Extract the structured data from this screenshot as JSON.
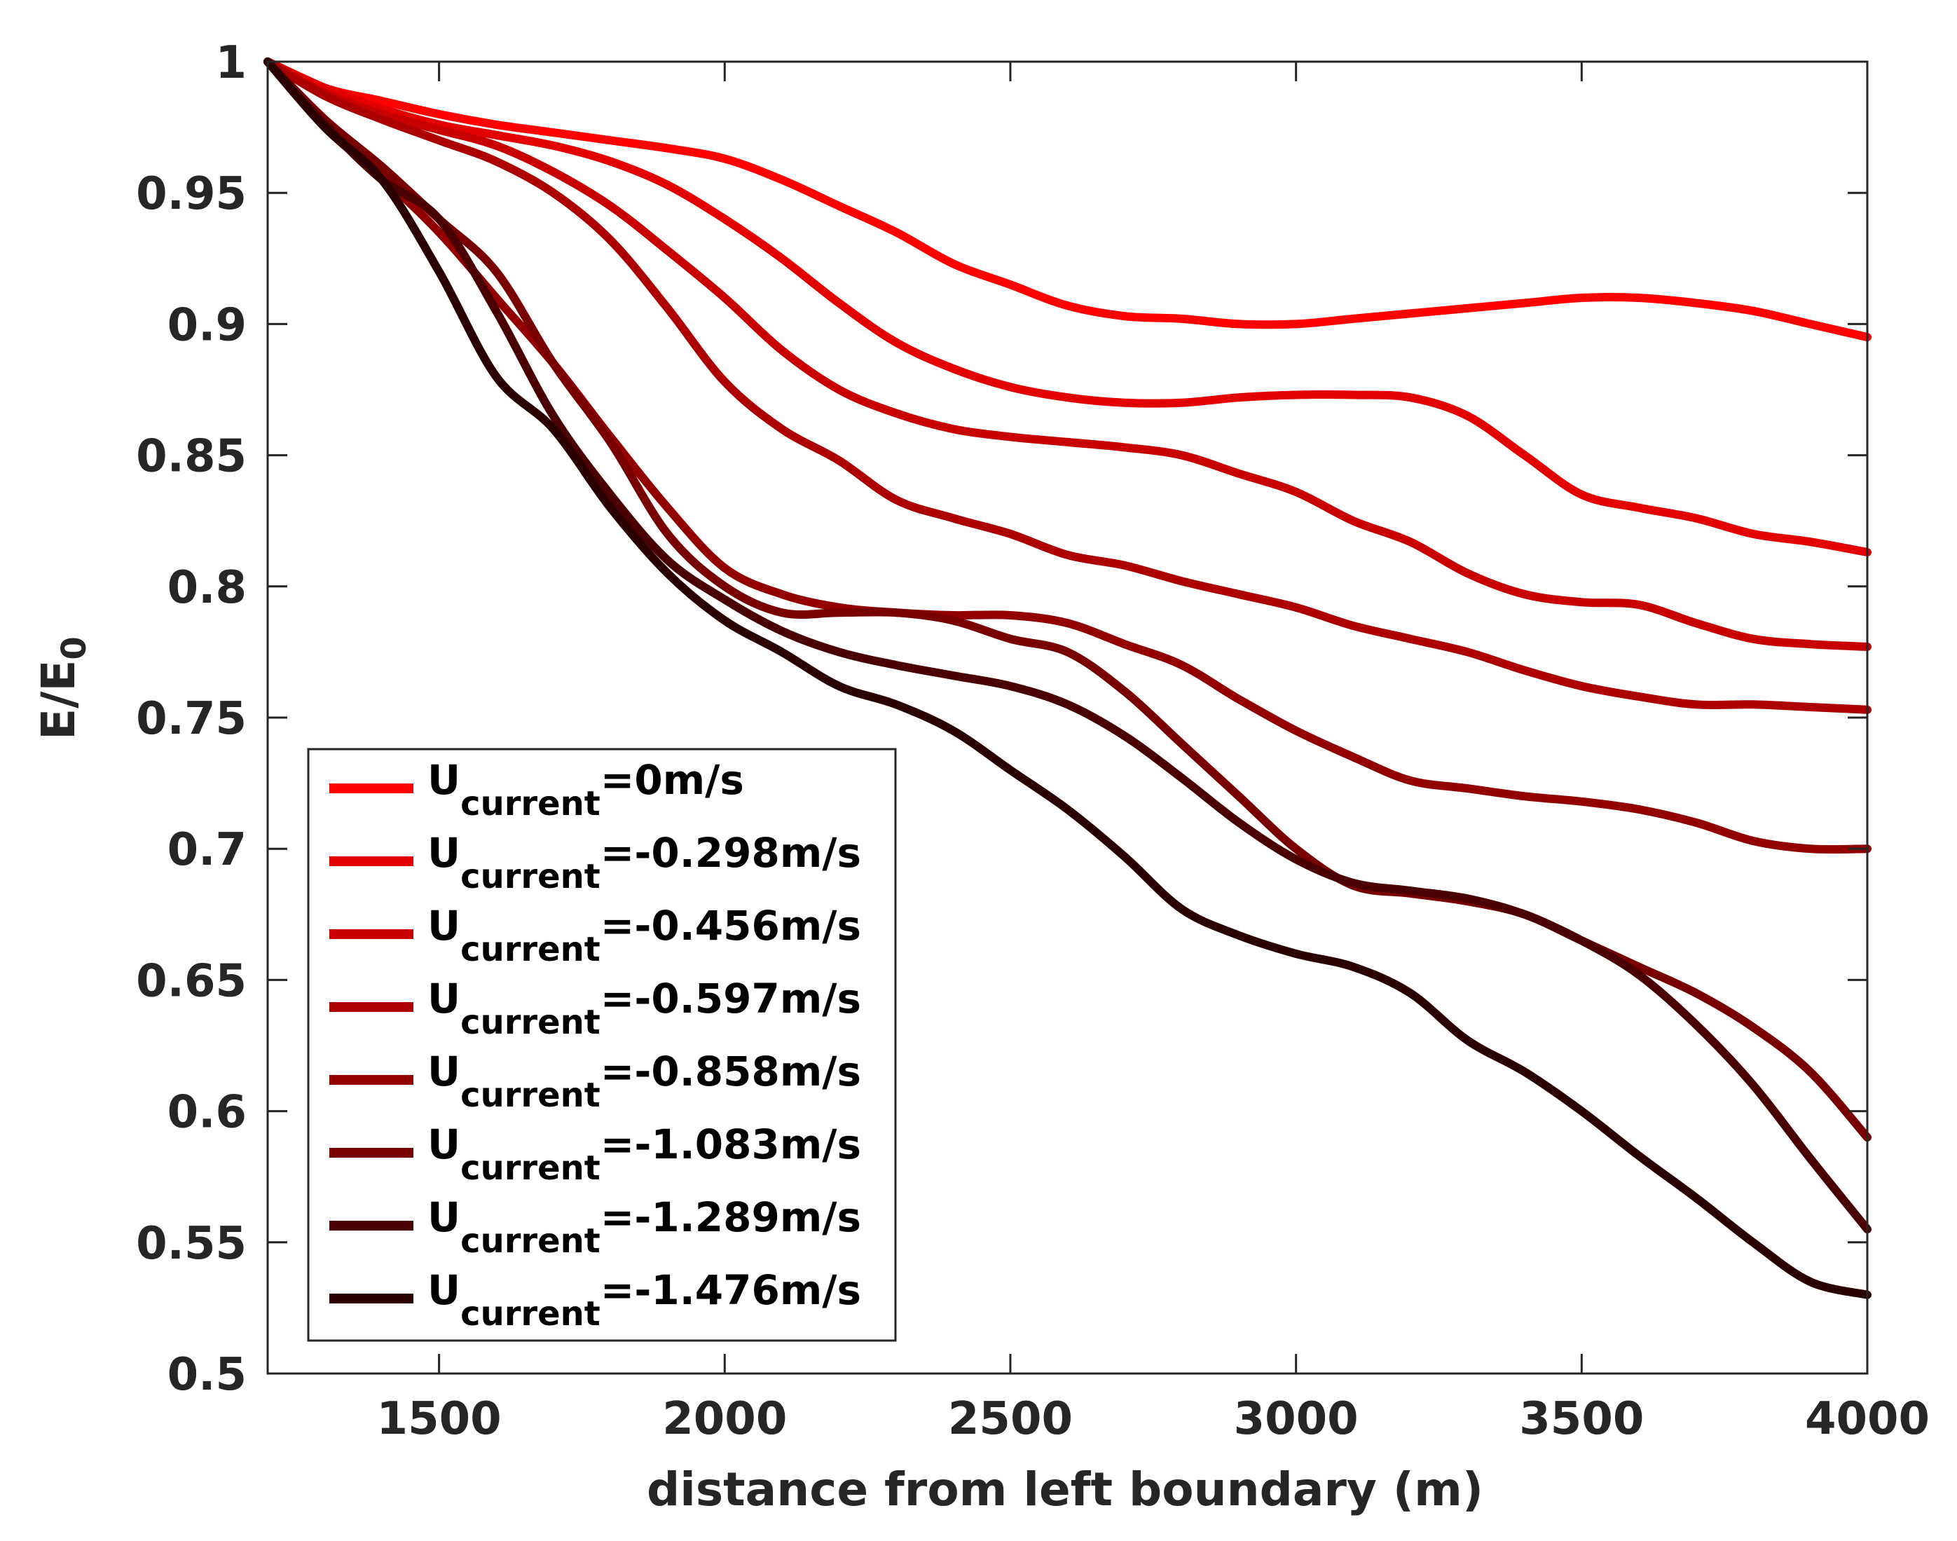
{
  "chart_data": {
    "type": "line",
    "title": "",
    "xlabel": "distance from left boundary (m)",
    "ylabel": {
      "main": "E/E",
      "sub": "0"
    },
    "xlim": [
      1200,
      4000
    ],
    "ylim": [
      0.5,
      1.0
    ],
    "xticks": [
      1500,
      2000,
      2500,
      3000,
      3500,
      4000
    ],
    "xtick_labels": [
      "1500",
      "2000",
      "2500",
      "3000",
      "3500",
      "4000"
    ],
    "yticks": [
      0.5,
      0.55,
      0.6,
      0.65,
      0.7,
      0.75,
      0.8,
      0.85,
      0.9,
      0.95,
      1.0
    ],
    "ytick_labels": [
      "0.5",
      "0.55",
      "0.6",
      "0.65",
      "0.7",
      "0.75",
      "0.8",
      "0.85",
      "0.9",
      "0.95",
      "1"
    ],
    "grid": false,
    "legend_position": "bottom-left",
    "legend_prefix": "U",
    "legend_subscript": "current",
    "x": [
      1200,
      1300,
      1400,
      1500,
      1600,
      1700,
      1800,
      1900,
      2000,
      2100,
      2200,
      2300,
      2400,
      2500,
      2600,
      2700,
      2800,
      2900,
      3000,
      3100,
      3200,
      3300,
      3400,
      3500,
      3600,
      3700,
      3800,
      3900,
      4000
    ],
    "series": [
      {
        "name": "=0m/s",
        "color": "#ff0000",
        "values": [
          1.0,
          0.99,
          0.985,
          0.98,
          0.976,
          0.973,
          0.97,
          0.967,
          0.963,
          0.955,
          0.945,
          0.935,
          0.923,
          0.915,
          0.907,
          0.903,
          0.902,
          0.9,
          0.9,
          0.902,
          0.904,
          0.906,
          0.908,
          0.91,
          0.91,
          0.908,
          0.905,
          0.9,
          0.895
        ]
      },
      {
        "name": "=-0.298m/s",
        "color": "#e30000",
        "values": [
          1.0,
          0.99,
          0.982,
          0.976,
          0.972,
          0.968,
          0.962,
          0.953,
          0.94,
          0.925,
          0.908,
          0.893,
          0.883,
          0.876,
          0.872,
          0.87,
          0.87,
          0.872,
          0.873,
          0.873,
          0.872,
          0.865,
          0.85,
          0.835,
          0.83,
          0.826,
          0.82,
          0.817,
          0.813
        ]
      },
      {
        "name": "=-0.456m/s",
        "color": "#c80000",
        "values": [
          1.0,
          0.988,
          0.98,
          0.974,
          0.968,
          0.958,
          0.945,
          0.928,
          0.91,
          0.89,
          0.875,
          0.866,
          0.86,
          0.857,
          0.855,
          0.853,
          0.85,
          0.843,
          0.836,
          0.825,
          0.817,
          0.805,
          0.797,
          0.794,
          0.793,
          0.786,
          0.78,
          0.778,
          0.777
        ]
      },
      {
        "name": "=-0.597m/s",
        "color": "#ad0000",
        "values": [
          1.0,
          0.987,
          0.978,
          0.97,
          0.962,
          0.95,
          0.932,
          0.906,
          0.878,
          0.86,
          0.848,
          0.833,
          0.826,
          0.82,
          0.812,
          0.808,
          0.802,
          0.797,
          0.792,
          0.785,
          0.78,
          0.775,
          0.768,
          0.762,
          0.758,
          0.755,
          0.755,
          0.754,
          0.753
        ]
      },
      {
        "name": "=-0.858m/s",
        "color": "#930000",
        "values": [
          1.0,
          0.975,
          0.956,
          0.935,
          0.91,
          0.885,
          0.857,
          0.83,
          0.807,
          0.797,
          0.792,
          0.79,
          0.789,
          0.789,
          0.786,
          0.778,
          0.77,
          0.757,
          0.745,
          0.735,
          0.726,
          0.723,
          0.72,
          0.718,
          0.715,
          0.71,
          0.703,
          0.7,
          0.7
        ]
      },
      {
        "name": "=-1.083m/s",
        "color": "#780000",
        "values": [
          1.0,
          0.978,
          0.96,
          0.94,
          0.92,
          0.885,
          0.855,
          0.82,
          0.8,
          0.79,
          0.79,
          0.79,
          0.787,
          0.78,
          0.775,
          0.76,
          0.74,
          0.72,
          0.7,
          0.686,
          0.683,
          0.68,
          0.675,
          0.665,
          0.655,
          0.645,
          0.632,
          0.615,
          0.59
        ]
      },
      {
        "name": "=-1.289m/s",
        "color": "#4a0000",
        "values": [
          1.0,
          0.976,
          0.955,
          0.94,
          0.905,
          0.865,
          0.835,
          0.81,
          0.795,
          0.783,
          0.775,
          0.77,
          0.766,
          0.762,
          0.755,
          0.743,
          0.727,
          0.71,
          0.696,
          0.687,
          0.684,
          0.681,
          0.675,
          0.665,
          0.652,
          0.633,
          0.61,
          0.582,
          0.555
        ]
      },
      {
        "name": "=-1.476m/s",
        "color": "#2b0000",
        "values": [
          1.0,
          0.975,
          0.955,
          0.92,
          0.88,
          0.86,
          0.83,
          0.805,
          0.787,
          0.775,
          0.762,
          0.755,
          0.745,
          0.73,
          0.715,
          0.697,
          0.677,
          0.667,
          0.66,
          0.655,
          0.645,
          0.627,
          0.615,
          0.6,
          0.583,
          0.567,
          0.55,
          0.535,
          0.53
        ]
      }
    ]
  }
}
